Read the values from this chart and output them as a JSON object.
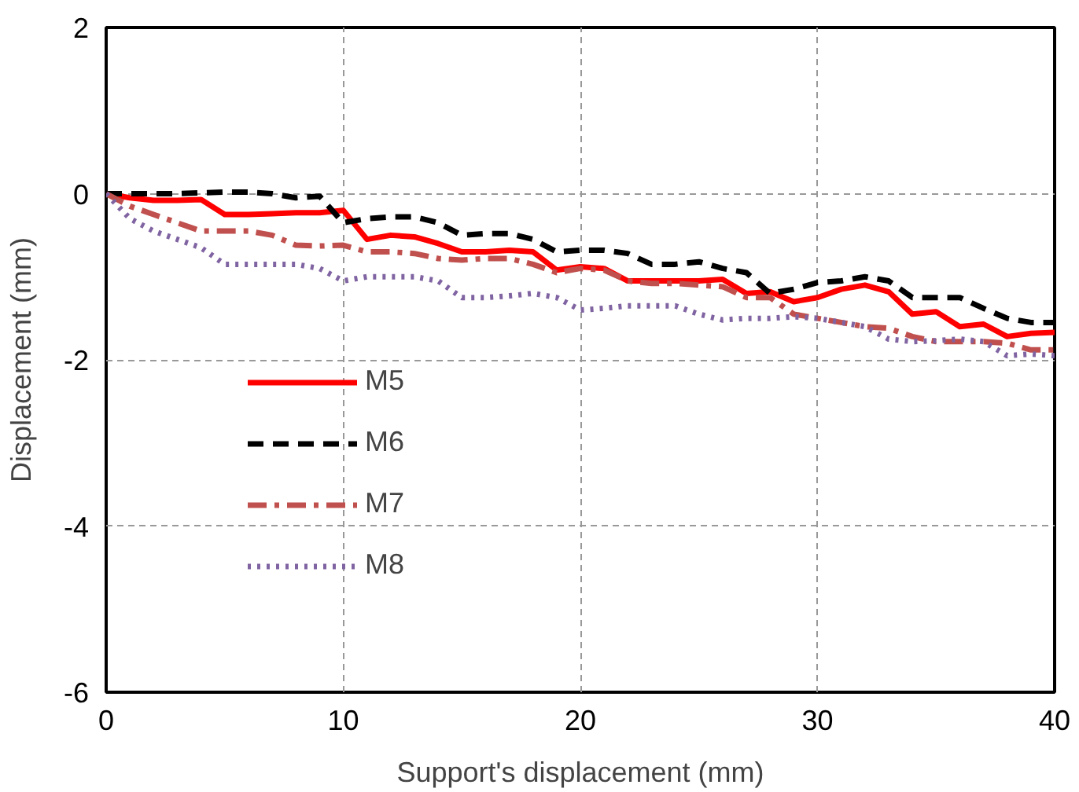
{
  "chart_data": {
    "type": "line",
    "xlabel": "Support's displacement (mm)",
    "ylabel": "Displacement (mm)",
    "x": [
      0,
      1,
      2,
      3,
      4,
      5,
      6,
      7,
      8,
      9,
      10,
      11,
      12,
      13,
      14,
      15,
      16,
      17,
      18,
      19,
      20,
      21,
      22,
      23,
      24,
      25,
      26,
      27,
      28,
      29,
      30,
      31,
      32,
      33,
      34,
      35,
      36,
      37,
      38,
      39,
      40
    ],
    "series": [
      {
        "name": "M5",
        "color": "#ff0000",
        "line_style": "solid",
        "values": [
          0,
          -0.05,
          -0.08,
          -0.08,
          -0.07,
          -0.25,
          -0.25,
          -0.24,
          -0.23,
          -0.23,
          -0.2,
          -0.55,
          -0.5,
          -0.52,
          -0.6,
          -0.7,
          -0.7,
          -0.68,
          -0.7,
          -0.92,
          -0.88,
          -0.9,
          -1.05,
          -1.05,
          -1.05,
          -1.05,
          -1.03,
          -1.2,
          -1.18,
          -1.3,
          -1.25,
          -1.15,
          -1.1,
          -1.18,
          -1.45,
          -1.42,
          -1.6,
          -1.57,
          -1.72,
          -1.68,
          -1.67
        ]
      },
      {
        "name": "M6",
        "color": "#000000",
        "line_style": "dashed",
        "values": [
          0,
          0,
          0,
          0,
          0.01,
          0.02,
          0.02,
          0,
          -0.05,
          -0.03,
          -0.35,
          -0.3,
          -0.28,
          -0.28,
          -0.35,
          -0.5,
          -0.48,
          -0.48,
          -0.55,
          -0.7,
          -0.68,
          -0.68,
          -0.72,
          -0.85,
          -0.85,
          -0.82,
          -0.9,
          -0.95,
          -1.2,
          -1.15,
          -1.07,
          -1.05,
          -1.0,
          -1.05,
          -1.25,
          -1.25,
          -1.25,
          -1.38,
          -1.5,
          -1.55,
          -1.55
        ]
      },
      {
        "name": "M7",
        "color": "#c0504d",
        "line_style": "dashdot",
        "values": [
          0,
          -0.15,
          -0.25,
          -0.35,
          -0.45,
          -0.45,
          -0.45,
          -0.5,
          -0.62,
          -0.63,
          -0.62,
          -0.7,
          -0.7,
          -0.72,
          -0.78,
          -0.8,
          -0.78,
          -0.78,
          -0.85,
          -0.95,
          -0.9,
          -0.92,
          -1.05,
          -1.08,
          -1.08,
          -1.1,
          -1.12,
          -1.25,
          -1.25,
          -1.45,
          -1.5,
          -1.55,
          -1.6,
          -1.62,
          -1.72,
          -1.78,
          -1.78,
          -1.78,
          -1.8,
          -1.88,
          -1.88
        ]
      },
      {
        "name": "M8",
        "color": "#8064a2",
        "line_style": "dotted",
        "values": [
          0,
          -0.3,
          -0.45,
          -0.55,
          -0.65,
          -0.85,
          -0.85,
          -0.85,
          -0.85,
          -0.9,
          -1.05,
          -1.0,
          -1.0,
          -1.0,
          -1.05,
          -1.25,
          -1.25,
          -1.23,
          -1.2,
          -1.25,
          -1.4,
          -1.38,
          -1.35,
          -1.35,
          -1.35,
          -1.45,
          -1.52,
          -1.5,
          -1.5,
          -1.48,
          -1.5,
          -1.55,
          -1.6,
          -1.75,
          -1.78,
          -1.77,
          -1.75,
          -1.78,
          -1.95,
          -1.93,
          -1.95
        ]
      }
    ],
    "xlim": [
      0,
      40
    ],
    "xticks": [
      0,
      10,
      20,
      30,
      40
    ],
    "ylim": [
      -6,
      2
    ],
    "yticks": [
      -6,
      -4,
      -2,
      0,
      2
    ],
    "grid": true,
    "legend": "bottom left"
  }
}
